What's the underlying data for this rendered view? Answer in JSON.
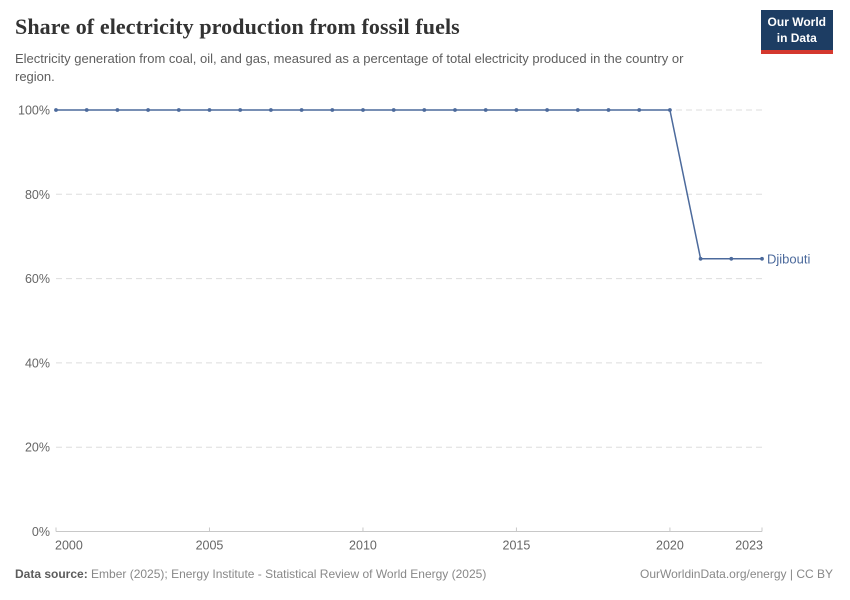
{
  "header": {
    "title": "Share of electricity production from fossil fuels",
    "subtitle": "Electricity generation from coal, oil, and gas, measured as a percentage of total electricity produced in the country or region.",
    "logo": {
      "line1": "Our World",
      "line2": "in Data"
    }
  },
  "chart_data": {
    "type": "line",
    "title": "Share of electricity production from fossil fuels",
    "subtitle": "Electricity generation from coal, oil, and gas, measured as a percentage of total electricity produced in the country or region.",
    "xlabel": "",
    "ylabel": "",
    "xlim": [
      2000,
      2023
    ],
    "ylim": [
      0,
      100
    ],
    "grid": "horizontal-dashed",
    "legend": "line-end-label",
    "x": [
      2000,
      2001,
      2002,
      2003,
      2004,
      2005,
      2006,
      2007,
      2008,
      2009,
      2010,
      2011,
      2012,
      2013,
      2014,
      2015,
      2016,
      2017,
      2018,
      2019,
      2020,
      2021,
      2022,
      2023
    ],
    "series": [
      {
        "name": "Djibouti",
        "color": "#4C6A9C",
        "values": [
          100,
          100,
          100,
          100,
          100,
          100,
          100,
          100,
          100,
          100,
          100,
          100,
          100,
          100,
          100,
          100,
          100,
          100,
          100,
          100,
          100,
          64.7,
          64.7,
          64.7
        ]
      }
    ],
    "yticks": [
      {
        "value": 0,
        "label": "0%"
      },
      {
        "value": 20,
        "label": "20%"
      },
      {
        "value": 40,
        "label": "40%"
      },
      {
        "value": 60,
        "label": "60%"
      },
      {
        "value": 80,
        "label": "80%"
      },
      {
        "value": 100,
        "label": "100%"
      }
    ],
    "xticks": [
      {
        "value": 2000,
        "label": "2000"
      },
      {
        "value": 2005,
        "label": "2005"
      },
      {
        "value": 2010,
        "label": "2010"
      },
      {
        "value": 2015,
        "label": "2015"
      },
      {
        "value": 2020,
        "label": "2020"
      },
      {
        "value": 2023,
        "label": "2023"
      }
    ],
    "colors": {
      "grid": "#dddddd",
      "axis": "#c8c8c8",
      "tick_text": "#666666"
    }
  },
  "footer": {
    "datasource_label": "Data source:",
    "datasource_text": " Ember (2025); Energy Institute - Statistical Review of World Energy (2025)",
    "license": "OurWorldinData.org/energy | CC BY"
  }
}
